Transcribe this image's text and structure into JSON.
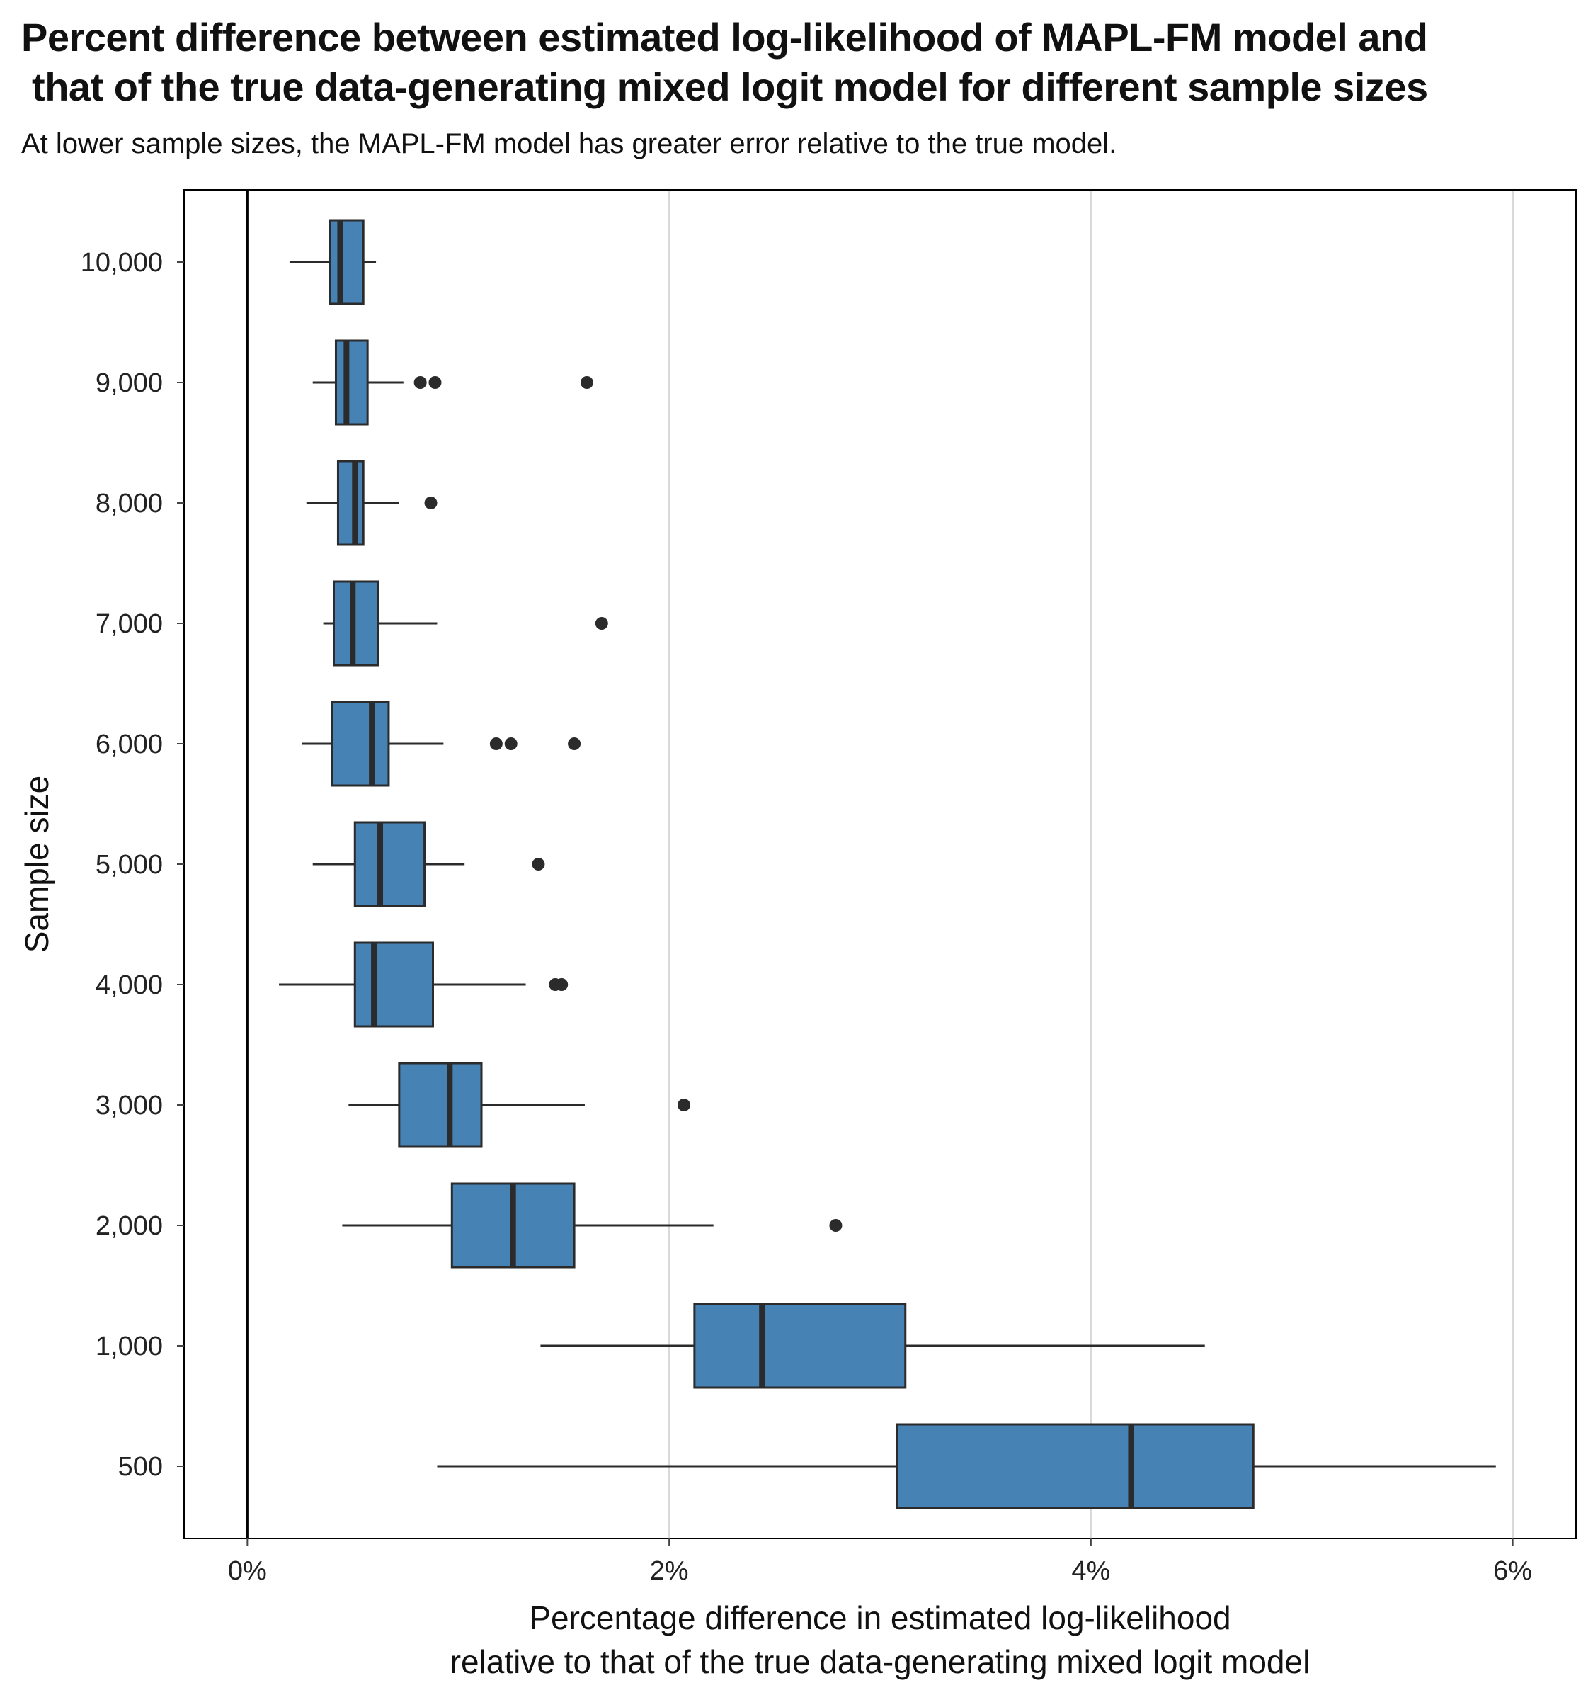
{
  "chart_data": {
    "type": "boxplot",
    "orientation": "horizontal",
    "title": "Percent difference between estimated log-likelihood of MAPL-FM model and\n that of the true data-generating mixed logit model for different sample sizes",
    "subtitle": "At lower sample sizes, the MAPL-FM model has greater error relative to the true model.",
    "xlabel_lines": [
      "Percentage difference in estimated log-likelihood",
      "relative to that of the true data-generating mixed logit model"
    ],
    "ylabel": "Sample size",
    "xlim": [
      -0.3,
      6.3
    ],
    "xticks": [
      0,
      2,
      4,
      6
    ],
    "xtick_labels": [
      "0%",
      "2%",
      "4%",
      "6%"
    ],
    "grid": "vertical",
    "reference_line_x": 0,
    "box_color": "#4682b4",
    "line_color": "#2b2b2b",
    "categories": [
      "10,000",
      "9,000",
      "8,000",
      "7,000",
      "6,000",
      "5,000",
      "4,000",
      "3,000",
      "2,000",
      "1,000",
      "500"
    ],
    "boxes": [
      {
        "category": "10,000",
        "whisker_low": 0.2,
        "q1": 0.39,
        "median": 0.44,
        "q3": 0.55,
        "whisker_high": 0.61,
        "outliers": []
      },
      {
        "category": "9,000",
        "whisker_low": 0.31,
        "q1": 0.42,
        "median": 0.47,
        "q3": 0.57,
        "whisker_high": 0.74,
        "outliers": [
          0.82,
          0.89,
          1.61
        ]
      },
      {
        "category": "8,000",
        "whisker_low": 0.28,
        "q1": 0.43,
        "median": 0.51,
        "q3": 0.55,
        "whisker_high": 0.72,
        "outliers": [
          0.87
        ]
      },
      {
        "category": "7,000",
        "whisker_low": 0.36,
        "q1": 0.41,
        "median": 0.5,
        "q3": 0.62,
        "whisker_high": 0.9,
        "outliers": [
          1.68
        ]
      },
      {
        "category": "6,000",
        "whisker_low": 0.26,
        "q1": 0.4,
        "median": 0.59,
        "q3": 0.67,
        "whisker_high": 0.93,
        "outliers": [
          1.18,
          1.25,
          1.55
        ]
      },
      {
        "category": "5,000",
        "whisker_low": 0.31,
        "q1": 0.51,
        "median": 0.63,
        "q3": 0.84,
        "whisker_high": 1.03,
        "outliers": [
          1.38
        ]
      },
      {
        "category": "4,000",
        "whisker_low": 0.15,
        "q1": 0.51,
        "median": 0.6,
        "q3": 0.88,
        "whisker_high": 1.32,
        "outliers": [
          1.46,
          1.49
        ]
      },
      {
        "category": "3,000",
        "whisker_low": 0.48,
        "q1": 0.72,
        "median": 0.96,
        "q3": 1.11,
        "whisker_high": 1.6,
        "outliers": [
          2.07
        ]
      },
      {
        "category": "2,000",
        "whisker_low": 0.45,
        "q1": 0.97,
        "median": 1.26,
        "q3": 1.55,
        "whisker_high": 2.21,
        "outliers": [
          2.79
        ]
      },
      {
        "category": "1,000",
        "whisker_low": 1.39,
        "q1": 2.12,
        "median": 2.44,
        "q3": 3.12,
        "whisker_high": 4.54,
        "outliers": []
      },
      {
        "category": "500",
        "whisker_low": 0.9,
        "q1": 3.08,
        "median": 4.19,
        "q3": 4.77,
        "whisker_high": 5.92,
        "outliers": []
      }
    ]
  }
}
